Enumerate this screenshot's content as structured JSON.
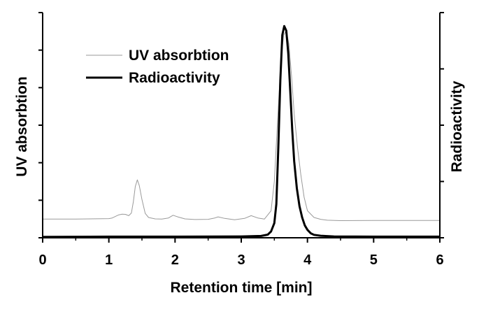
{
  "chart_data": {
    "type": "line",
    "title": "",
    "xlabel": "Retention time [min]",
    "ylabel_left": "UV absorbtion",
    "ylabel_right": "Radioactivity",
    "xlim": [
      0,
      6
    ],
    "x_ticks": [
      0,
      1,
      2,
      3,
      4,
      5,
      6
    ],
    "ylim": [
      0,
      1
    ],
    "y_ticks_left_count": 7,
    "y_ticks_right_count": 5,
    "grid": false,
    "legend_position": "top-left",
    "series": [
      {
        "name": "UV absorbtion",
        "color": "#9a9a9a",
        "style": "thin",
        "x": [
          0.0,
          0.5,
          1.0,
          1.05,
          1.1,
          1.15,
          1.2,
          1.25,
          1.3,
          1.34,
          1.37,
          1.4,
          1.43,
          1.46,
          1.5,
          1.55,
          1.6,
          1.7,
          1.8,
          1.9,
          1.97,
          2.05,
          2.15,
          2.3,
          2.5,
          2.6,
          2.65,
          2.75,
          2.9,
          3.05,
          3.15,
          3.25,
          3.35,
          3.45,
          3.5,
          3.55,
          3.6,
          3.64,
          3.68,
          3.72,
          3.76,
          3.8,
          3.85,
          3.9,
          3.95,
          4.0,
          4.1,
          4.2,
          4.3,
          4.5,
          5.0,
          5.5,
          6.0
        ],
        "y": [
          0.083,
          0.083,
          0.085,
          0.088,
          0.095,
          0.102,
          0.105,
          0.104,
          0.098,
          0.11,
          0.16,
          0.228,
          0.257,
          0.232,
          0.17,
          0.108,
          0.09,
          0.084,
          0.083,
          0.088,
          0.1,
          0.092,
          0.084,
          0.081,
          0.082,
          0.088,
          0.093,
          0.086,
          0.08,
          0.086,
          0.098,
          0.088,
          0.083,
          0.12,
          0.25,
          0.53,
          0.79,
          0.9,
          0.92,
          0.86,
          0.72,
          0.55,
          0.4,
          0.28,
          0.18,
          0.12,
          0.09,
          0.082,
          0.078,
          0.076,
          0.077,
          0.077,
          0.077
        ]
      },
      {
        "name": "Radioactivity",
        "color": "#000000",
        "style": "thick",
        "x": [
          0.0,
          1.0,
          2.0,
          3.0,
          3.3,
          3.4,
          3.45,
          3.5,
          3.53,
          3.56,
          3.59,
          3.62,
          3.65,
          3.68,
          3.71,
          3.74,
          3.77,
          3.8,
          3.84,
          3.88,
          3.92,
          3.96,
          4.0,
          4.05,
          4.1,
          4.2,
          4.4,
          5.0,
          6.0
        ],
        "y": [
          0.004,
          0.005,
          0.005,
          0.006,
          0.008,
          0.014,
          0.028,
          0.065,
          0.15,
          0.4,
          0.7,
          0.9,
          0.94,
          0.92,
          0.82,
          0.65,
          0.48,
          0.34,
          0.22,
          0.14,
          0.09,
          0.055,
          0.035,
          0.02,
          0.013,
          0.009,
          0.006,
          0.005,
          0.005
        ]
      }
    ]
  }
}
